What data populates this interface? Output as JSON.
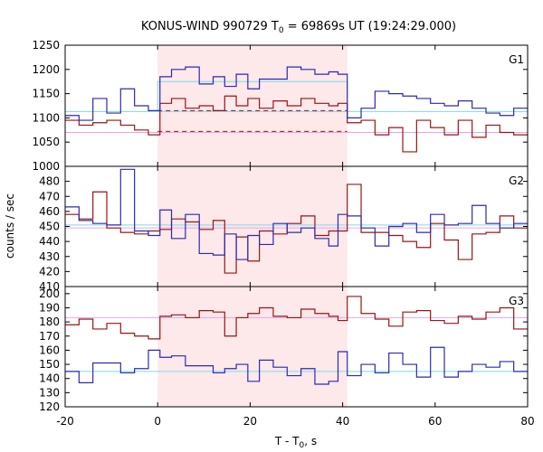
{
  "chart_data": {
    "type": "line",
    "title_parts": {
      "pre": "KONUS-WIND 990729 T",
      "sub": "0",
      "post": " = 69869s UT (19:24:29.000)"
    },
    "xlabel_parts": {
      "pre": "T - T",
      "sub": "0",
      "post": ", s"
    },
    "ylabel": "counts / sec",
    "xlim": [
      -20,
      80
    ],
    "xticks": [
      -20,
      0,
      20,
      40,
      60,
      80
    ],
    "shade": {
      "x0": 0,
      "x1": 41,
      "color": "#fde8ea"
    },
    "colors": {
      "blue": "#2b2bb0",
      "red": "#9a1414",
      "cyan": "#7fd8ec",
      "pink": "#e6a6e6"
    },
    "bin_edges": [
      -20,
      -17,
      -14,
      -11,
      -8,
      -5,
      -2,
      0.5,
      3,
      6,
      9,
      12,
      14.5,
      17,
      19.5,
      22,
      25,
      28,
      31,
      34,
      37,
      39,
      41,
      44,
      47,
      50,
      53,
      56,
      59,
      62,
      65,
      68,
      71,
      74,
      77,
      80
    ],
    "panels": [
      {
        "label": "G1",
        "ylim": [
          1000,
          1250
        ],
        "yticks": [
          1000,
          1050,
          1100,
          1150,
          1200,
          1250
        ],
        "blue": [
          1105,
          1095,
          1140,
          1110,
          1160,
          1125,
          1115,
          1185,
          1200,
          1205,
          1170,
          1185,
          1165,
          1190,
          1160,
          1180,
          1180,
          1205,
          1200,
          1190,
          1195,
          1190,
          1100,
          1120,
          1155,
          1150,
          1145,
          1140,
          1130,
          1125,
          1135,
          1120,
          1110,
          1105,
          1120
        ],
        "red": [
          1095,
          1085,
          1090,
          1095,
          1085,
          1075,
          1065,
          1130,
          1140,
          1120,
          1125,
          1115,
          1145,
          1125,
          1140,
          1120,
          1135,
          1125,
          1140,
          1130,
          1125,
          1130,
          1090,
          1095,
          1065,
          1080,
          1030,
          1095,
          1080,
          1065,
          1095,
          1060,
          1085,
          1070,
          1065
        ],
        "bg_blue": 1113,
        "bg_red": 1070,
        "int_blue": 1175,
        "int_red": 1115,
        "int_red_lo": 1072
      },
      {
        "label": "G2",
        "ylim": [
          410,
          490
        ],
        "yticks": [
          410,
          420,
          430,
          440,
          450,
          460,
          470,
          480
        ],
        "blue": [
          463,
          454,
          452,
          451,
          488,
          447,
          444,
          461,
          442,
          458,
          432,
          431,
          445,
          428,
          444,
          438,
          452,
          446,
          449,
          442,
          437,
          458,
          457,
          449,
          437,
          450,
          452,
          446,
          458,
          451,
          452,
          464,
          452,
          449,
          452
        ],
        "red": [
          458,
          455,
          473,
          449,
          446,
          445,
          447,
          448,
          455,
          453,
          448,
          454,
          419,
          443,
          427,
          447,
          445,
          452,
          457,
          444,
          447,
          447,
          478,
          446,
          446,
          444,
          440,
          436,
          452,
          441,
          428,
          445,
          446,
          457,
          449
        ],
        "bg_blue": 451,
        "bg_red": 449
      },
      {
        "label": "G3",
        "ylim": [
          120,
          205
        ],
        "yticks": [
          120,
          130,
          140,
          150,
          160,
          170,
          180,
          190,
          200
        ],
        "blue": [
          145,
          137,
          151,
          151,
          144,
          147,
          160,
          155,
          156,
          149,
          149,
          144,
          147,
          150,
          138,
          153,
          148,
          142,
          147,
          136,
          138,
          159,
          142,
          150,
          144,
          158,
          150,
          141,
          162,
          141,
          145,
          150,
          148,
          152,
          145
        ],
        "red": [
          178,
          182,
          175,
          179,
          172,
          170,
          168,
          184,
          185,
          183,
          188,
          187,
          170,
          183,
          186,
          190,
          184,
          183,
          189,
          186,
          184,
          181,
          198,
          186,
          182,
          177,
          187,
          188,
          181,
          179,
          184,
          182,
          187,
          190,
          175
        ],
        "bg_blue": 145,
        "bg_red": 183
      }
    ]
  }
}
